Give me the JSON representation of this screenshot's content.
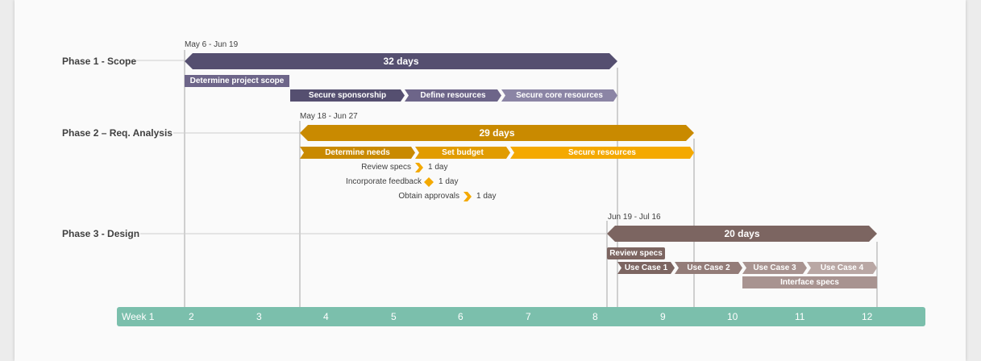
{
  "phases": [
    {
      "label": "Phase 1 - Scope",
      "dates": "May 6 - Jun 19",
      "duration": "32 days",
      "color": "#554f70"
    },
    {
      "label": "Phase 2 – Req. Analysis",
      "dates": "May 18 - Jun 27",
      "duration": "29 days",
      "color": "#c98a00"
    },
    {
      "label": "Phase 3 - Design",
      "dates": "Jun 19 - Jul 16",
      "duration": "20 days",
      "color": "#7c6561"
    }
  ],
  "tasks": [
    {
      "label": "Determine project scope",
      "color": "#6d6589"
    },
    {
      "label": "Secure sponsorship",
      "color": "#554f70"
    },
    {
      "label": "Define resources",
      "color": "#6d6589"
    },
    {
      "label": "Secure core resources",
      "color": "#8b85a5"
    },
    {
      "label": "Determine needs",
      "color": "#c98a00"
    },
    {
      "label": "Set budget",
      "color": "#e19c00"
    },
    {
      "label": "Secure resources",
      "color": "#f4a900"
    },
    {
      "label": "Review specs",
      "color": "#7c6561"
    },
    {
      "label": "Use Case 1",
      "color": "#7c6561"
    },
    {
      "label": "Use Case 2",
      "color": "#937c78"
    },
    {
      "label": "Use Case 3",
      "color": "#a89390"
    },
    {
      "label": "Use Case 4",
      "color": "#b9a7a4"
    },
    {
      "label": "Interface specs",
      "color": "#a89390"
    }
  ],
  "milestones": [
    {
      "label": "Review specs",
      "duration": "1 day",
      "shape": "chevron",
      "color": "#f4a900"
    },
    {
      "label": "Incorporate feedback",
      "duration": "1 day",
      "shape": "diamond",
      "color": "#f4a900"
    },
    {
      "label": "Obtain approvals",
      "duration": "1 day",
      "shape": "chevron",
      "color": "#f4a900"
    }
  ],
  "axis": {
    "first_label": "Week 1",
    "ticks": [
      "2",
      "3",
      "4",
      "5",
      "6",
      "7",
      "8",
      "9",
      "10",
      "11",
      "12"
    ],
    "color": "#7bbfac"
  },
  "chart_data": {
    "type": "gantt",
    "x_unit": "week",
    "phases": [
      {
        "name": "Phase 1 - Scope",
        "start": "May 6",
        "end": "Jun 19",
        "duration_days": 32
      },
      {
        "name": "Phase 2 – Req. Analysis",
        "start": "May 18",
        "end": "Jun 27",
        "duration_days": 29
      },
      {
        "name": "Phase 3 - Design",
        "start": "Jun 19",
        "end": "Jul 16",
        "duration_days": 20
      }
    ],
    "tasks": [
      {
        "name": "Determine project scope",
        "phase": 1,
        "start_week": 2.0,
        "end_week": 3.55
      },
      {
        "name": "Secure sponsorship",
        "phase": 1,
        "start_week": 3.55,
        "end_week": 5.25
      },
      {
        "name": "Define resources",
        "phase": 1,
        "start_week": 5.25,
        "end_week": 6.7
      },
      {
        "name": "Secure core resources",
        "phase": 1,
        "start_week": 6.7,
        "end_week": 8.3
      },
      {
        "name": "Determine needs",
        "phase": 2,
        "start_week": 3.7,
        "end_week": 5.4
      },
      {
        "name": "Set budget",
        "phase": 2,
        "start_week": 5.4,
        "end_week": 6.8
      },
      {
        "name": "Secure resources",
        "phase": 2,
        "start_week": 6.8,
        "end_week": 9.45
      },
      {
        "name": "Review specs",
        "phase": 3,
        "start_week": 8.15,
        "end_week": 9.0
      },
      {
        "name": "Use Case 1",
        "phase": 3,
        "start_week": 8.3,
        "end_week": 9.15
      },
      {
        "name": "Use Case 2",
        "phase": 3,
        "start_week": 9.15,
        "end_week": 10.15
      },
      {
        "name": "Use Case 3",
        "phase": 3,
        "start_week": 10.15,
        "end_week": 11.1
      },
      {
        "name": "Use Case 4",
        "phase": 3,
        "start_week": 11.1,
        "end_week": 12.1
      },
      {
        "name": "Interface specs",
        "phase": 3,
        "start_week": 10.15,
        "end_week": 12.1
      }
    ],
    "milestones": [
      {
        "name": "Review specs",
        "week": 5.4,
        "duration_days": 1
      },
      {
        "name": "Incorporate feedback",
        "week": 5.55,
        "duration_days": 1
      },
      {
        "name": "Obtain approvals",
        "week": 6.1,
        "duration_days": 1
      }
    ]
  }
}
